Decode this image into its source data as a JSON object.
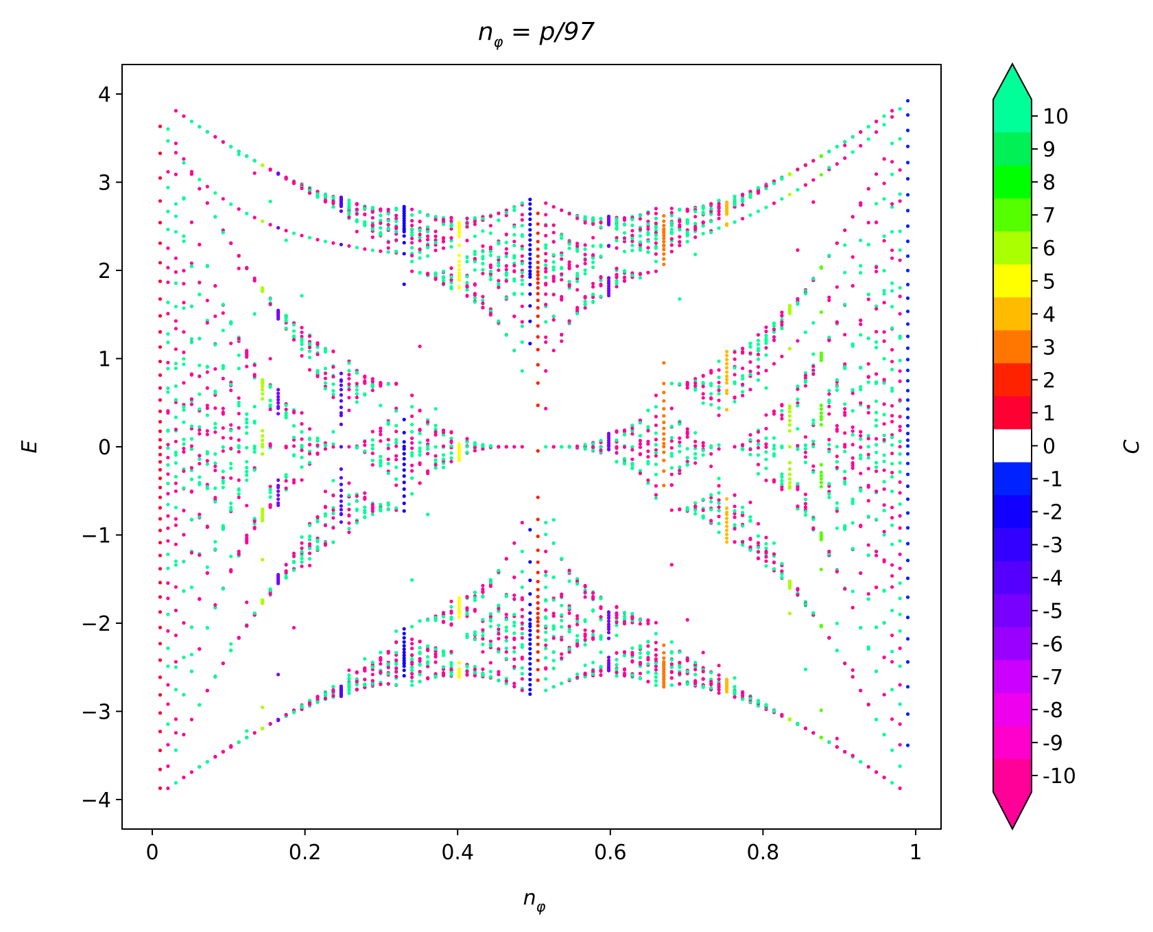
{
  "chart_data": {
    "type": "scatter",
    "title": "n_φ = p/97",
    "title_parts": {
      "base": "n",
      "subscript": "φ",
      "rest": " = p/97"
    },
    "xlabel": "n_φ",
    "xlabel_parts": {
      "base": "n",
      "subscript": "φ"
    },
    "ylabel": "E",
    "xlim": [
      -0.04,
      1.04
    ],
    "ylim": [
      -4.35,
      4.35
    ],
    "xticks": [
      0,
      0.2,
      0.4,
      0.6,
      0.8,
      1
    ],
    "xtick_labels": [
      "0",
      "0.2",
      "0.4",
      "0.6",
      "0.8",
      "1"
    ],
    "yticks": [
      4,
      3,
      2,
      1,
      0,
      -1,
      -2,
      -3,
      -4
    ],
    "ytick_labels": [
      "4",
      "3",
      "2",
      "1",
      "0",
      "−1",
      "−2",
      "−3",
      "−4"
    ],
    "grid": false,
    "denominator": 97,
    "x_values": "p/97 for p = 1 … 96",
    "y_range": [
      -3.95,
      3.95
    ],
    "colorbar": {
      "label": "C",
      "min": -10,
      "max": 10,
      "extend": "both",
      "tick_labels": [
        "10",
        "9",
        "8",
        "7",
        "6",
        "5",
        "4",
        "3",
        "2",
        "1",
        "0",
        "-1",
        "-2",
        "-3",
        "-4",
        "-5",
        "-6",
        "-7",
        "-8",
        "-9",
        "-10"
      ],
      "colors": {
        "10": "#00ff99",
        "9": "#00f055",
        "8": "#00ff00",
        "7": "#55ff00",
        "6": "#aaff00",
        "5": "#ffff00",
        "4": "#ffbb00",
        "3": "#ff7700",
        "2": "#ff2200",
        "1": "#ff0033",
        "0": "#ffffff",
        "-1": "#0022ff",
        "-2": "#1100ff",
        "-3": "#3300ff",
        "-4": "#5500ff",
        "-5": "#7700ff",
        "-6": "#9900ff",
        "-7": "#cc00ff",
        "-8": "#ee00ee",
        "-9": "#ff00cc",
        "-10": "#ff0099"
      }
    },
    "highlighted_columns": [
      {
        "x": 0.0103,
        "C": 1
      },
      {
        "x": 0.9897,
        "C": -1
      },
      {
        "x": 0.1443,
        "C": 6
      },
      {
        "x": 0.1649,
        "C": -5
      },
      {
        "x": 0.2474,
        "C": -4
      },
      {
        "x": 0.3299,
        "C": -2
      },
      {
        "x": 0.4021,
        "C": 5
      },
      {
        "x": 0.4948,
        "C": -2
      },
      {
        "x": 0.5052,
        "C": 2
      },
      {
        "x": 0.5979,
        "C": -5
      },
      {
        "x": 0.6701,
        "C": 3
      },
      {
        "x": 0.7526,
        "C": 4
      },
      {
        "x": 0.8351,
        "C": 6
      },
      {
        "x": 0.8763,
        "C": 7
      }
    ]
  }
}
